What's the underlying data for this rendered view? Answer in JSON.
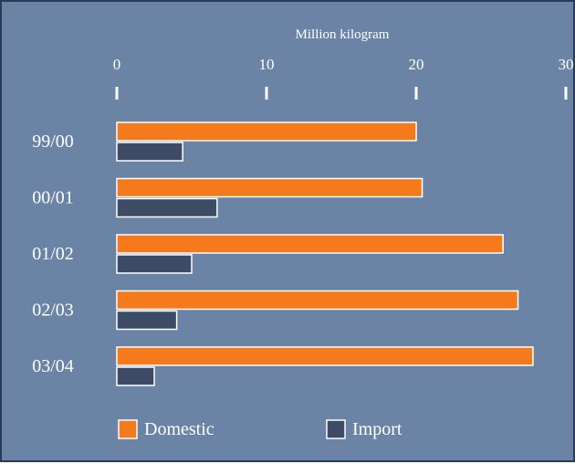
{
  "chart_data": {
    "type": "bar",
    "orientation": "horizontal",
    "xlabel": "Million kilogram",
    "xlim": [
      0,
      30
    ],
    "xticks": [
      "0",
      "10",
      "20",
      "30"
    ],
    "categories": [
      "99/00",
      "00/01",
      "01/02",
      "02/03",
      "03/04"
    ],
    "series": [
      {
        "name": "Domestic",
        "values": [
          20,
          20.4,
          25.8,
          26.8,
          27.8
        ],
        "color": "#f57a1c"
      },
      {
        "name": "Import",
        "values": [
          4.4,
          6.7,
          5.0,
          4.0,
          2.5
        ],
        "color": "#3d4b66"
      }
    ],
    "legend": "bottom",
    "background": "#6b84a6",
    "grid": false
  }
}
